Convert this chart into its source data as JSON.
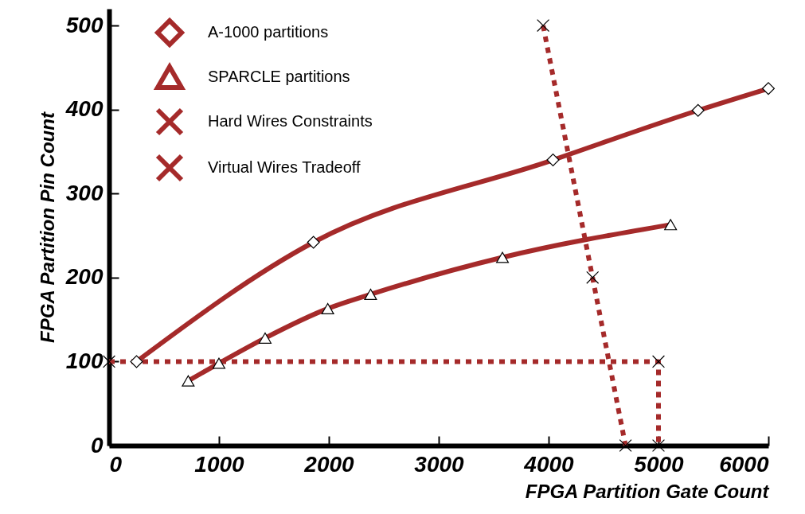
{
  "chart_data": {
    "type": "line",
    "xlabel": "FPGA Partition Gate Count",
    "ylabel": "FPGA Partition Pin Count",
    "xlim": [
      0,
      6000
    ],
    "xticks": [
      0,
      1000,
      2000,
      3000,
      4000,
      5000,
      6000
    ],
    "ylim": [
      0,
      520
    ],
    "yticks": [
      0,
      100,
      200,
      300,
      400,
      500
    ],
    "legend": "top left",
    "grid": false,
    "series": [
      {
        "name": "A-1000 partitions",
        "color": "#a52a2a",
        "marker": "diamond",
        "line_style": "solid",
        "x": [
          250,
          1860,
          4040,
          5360,
          6000
        ],
        "values": [
          100,
          242,
          340,
          399,
          425
        ]
      },
      {
        "name": "SPARCLE partitions",
        "color": "#a52a2a",
        "marker": "triangle",
        "line_style": "solid",
        "x": [
          720,
          1000,
          1420,
          1990,
          2380,
          3580,
          5110
        ],
        "values": [
          77,
          98,
          128,
          163,
          180,
          224,
          263
        ]
      },
      {
        "name": "Hard Wires Constraints",
        "color": "#a52a2a",
        "marker": "cross",
        "line_style": "dashed",
        "x": [
          0,
          5000,
          5000
        ],
        "values": [
          100,
          100,
          0
        ]
      },
      {
        "name": "Virtual Wires Tradeoff",
        "color": "#a52a2a",
        "marker": "cross",
        "line_style": "dashed",
        "x": [
          3950,
          4400,
          4700
        ],
        "values": [
          500,
          200,
          0
        ]
      }
    ]
  }
}
